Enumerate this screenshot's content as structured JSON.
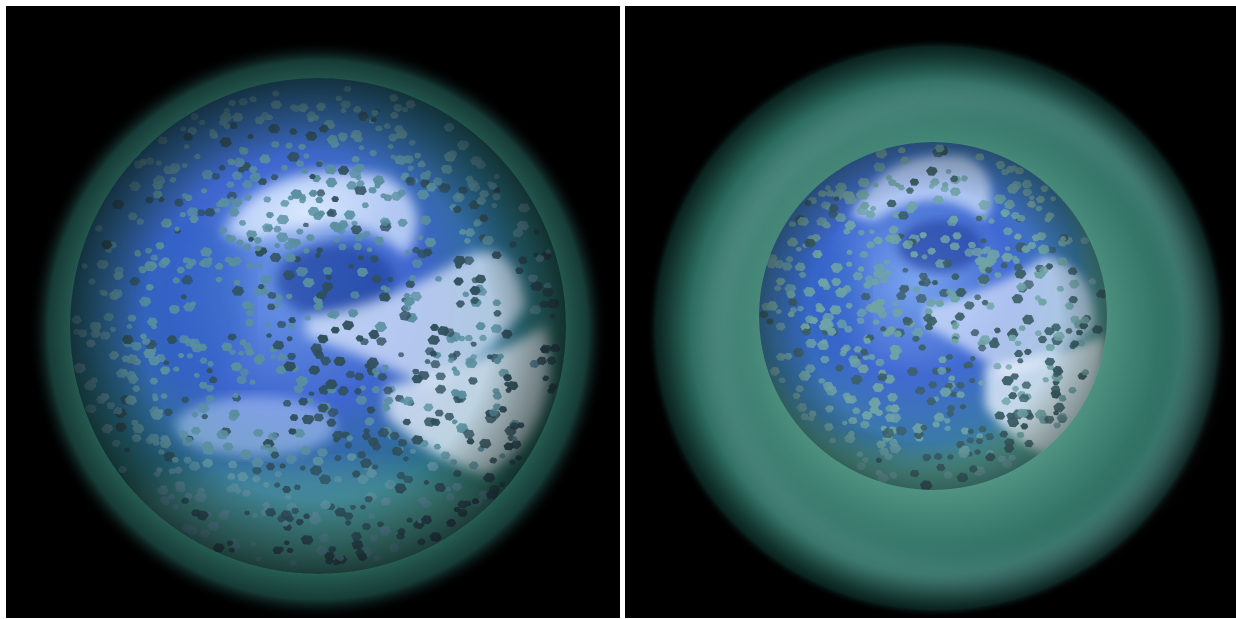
{
  "panels": [
    {
      "id": "left",
      "colors": {
        "background": "#000000",
        "halo": "#3f8f7e",
        "core": "#4a78d8",
        "highlight": "#e9f4ff",
        "particle": "#5a8fa0",
        "particle_dark": "#2f4f5c"
      }
    },
    {
      "id": "right",
      "colors": {
        "background": "#000000",
        "halo": "#4f9f88",
        "core": "#4a74d4",
        "highlight": "#eaf2ff",
        "particle": "#6fa3a6",
        "particle_dark": "#3b5e66"
      }
    }
  ]
}
